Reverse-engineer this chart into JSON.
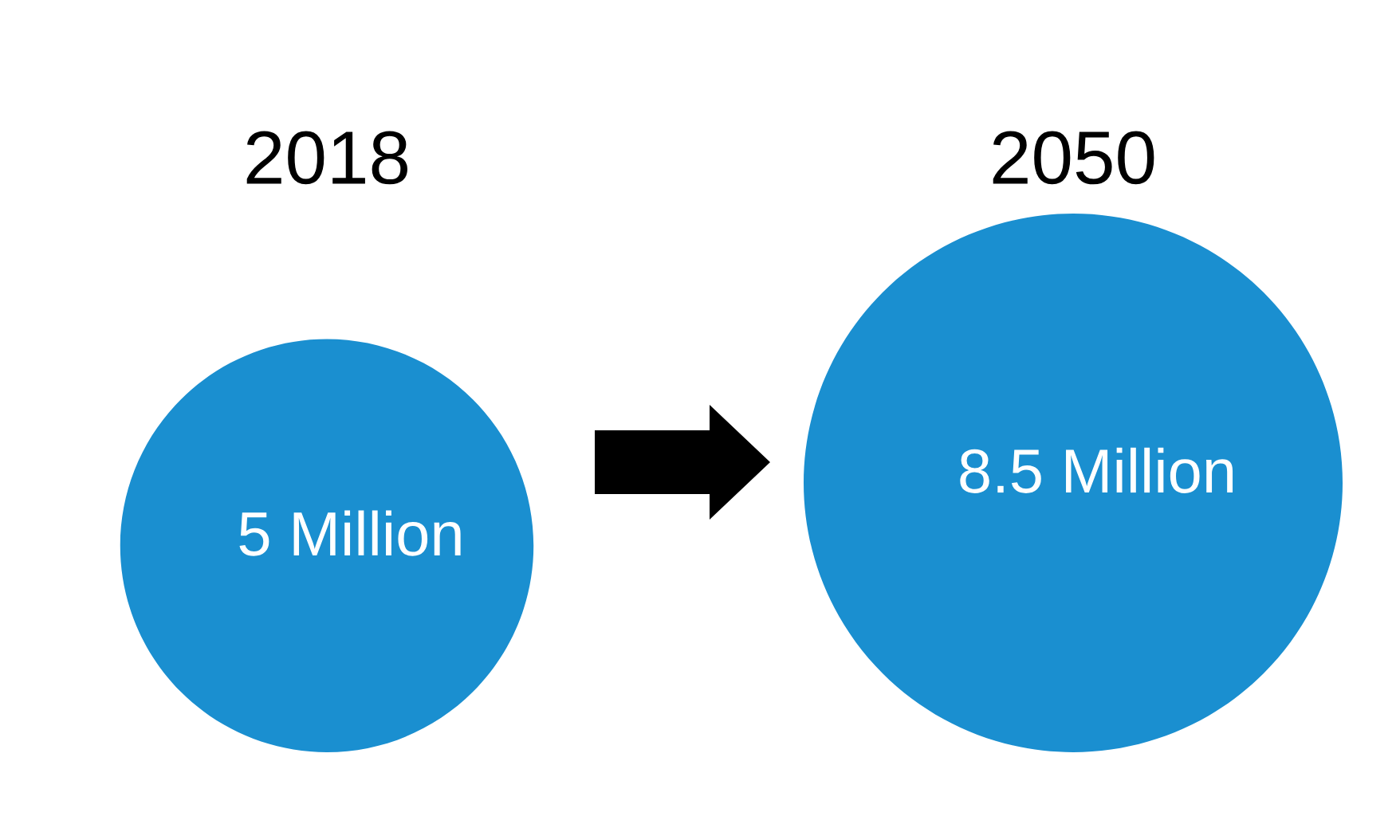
{
  "chart_data": {
    "type": "other",
    "categories": [
      "2018",
      "2050"
    ],
    "values": [
      5,
      8.5
    ],
    "value_labels": [
      "5 Million",
      "8.5 Million"
    ],
    "color": "#1a8fd0"
  }
}
